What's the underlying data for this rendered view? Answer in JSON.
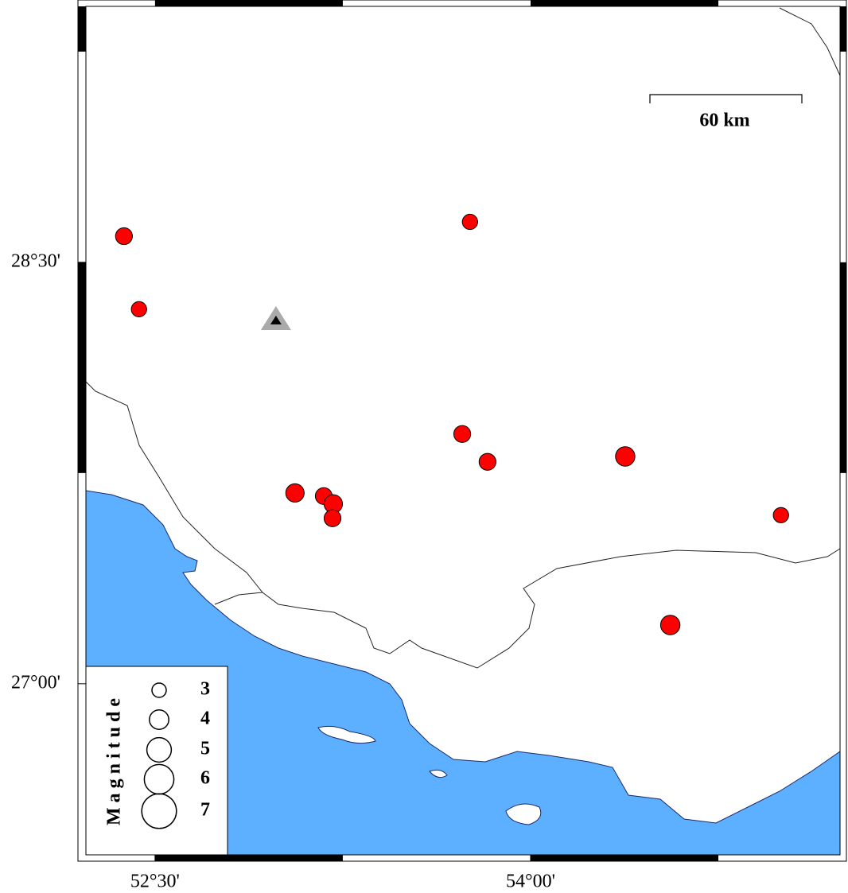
{
  "map": {
    "xlim": [
      52.224,
      55.236
    ],
    "ylim": [
      26.391,
      29.411
    ],
    "xticks": [
      {
        "value": 52.5,
        "label": "52°30'"
      },
      {
        "value": 54.0,
        "label": "54°00'"
      }
    ],
    "yticks": [
      {
        "value": 28.5,
        "label": "28°30'"
      },
      {
        "value": 27.0,
        "label": "27°00'"
      }
    ],
    "scale_bar": "60 km",
    "legend": {
      "title": "Magnitude",
      "magnitudes": [
        3,
        4,
        5,
        6,
        7
      ]
    },
    "station": {
      "lon": 52.983,
      "lat": 28.293
    },
    "events": {
      "lon": [
        52.376,
        52.436,
        53.758,
        53.727,
        53.828,
        54.378,
        53.059,
        53.174,
        53.212,
        53.209,
        55.0,
        54.558
      ],
      "lat": [
        28.593,
        28.333,
        28.644,
        27.889,
        27.79,
        27.809,
        27.679,
        27.668,
        27.64,
        27.589,
        27.6,
        27.209
      ],
      "magnitude": [
        3.5,
        3.2,
        3.2,
        3.5,
        3.5,
        4,
        3.8,
        3.5,
        3.8,
        3.5,
        3.2,
        4
      ]
    }
  }
}
